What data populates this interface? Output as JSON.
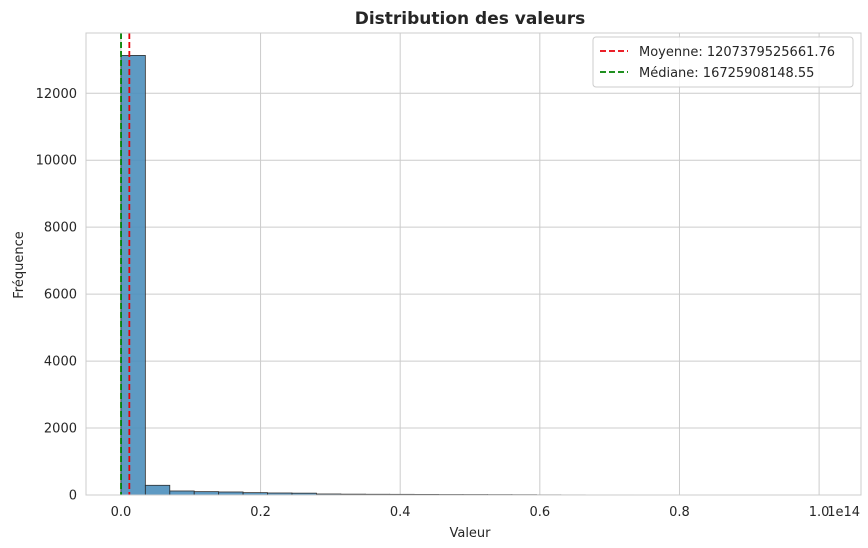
{
  "chart_data": {
    "type": "histogram",
    "title": "Distribution des valeurs",
    "xlabel": "Valeur",
    "ylabel": "Fréquence",
    "x_offset_label": "1e14",
    "x_scale": 100000000000000.0,
    "xlim": [
      -0.05,
      1.06
    ],
    "ylim": [
      0,
      13800
    ],
    "x_ticks": [
      0.0,
      0.2,
      0.4,
      0.6,
      0.8,
      1.0
    ],
    "x_tick_labels": [
      "0.0",
      "0.2",
      "0.4",
      "0.6",
      "0.8",
      "1.0"
    ],
    "y_ticks": [
      0,
      2000,
      4000,
      6000,
      8000,
      10000,
      12000
    ],
    "y_tick_labels": [
      "0",
      "2000",
      "4000",
      "6000",
      "8000",
      "10000",
      "12000"
    ],
    "bin_start": 0.0,
    "bin_width": 0.035,
    "counts": [
      13130,
      290,
      120,
      100,
      90,
      70,
      60,
      55,
      30,
      25,
      22,
      20,
      18,
      15,
      14,
      12,
      10,
      6,
      4,
      3,
      3,
      2,
      2,
      2,
      2,
      1,
      1,
      1,
      1,
      1
    ],
    "bar_color": "#4c8fbd",
    "grid": true,
    "legend_position": "upper right",
    "lines": [
      {
        "label": "Moyenne: 1207379525661.76",
        "x": 0.0120737952566176,
        "color": "#e8000b"
      },
      {
        "label": "Médiane: 16725908148.55",
        "x": 0.0001672590814855,
        "color": "#008000"
      }
    ]
  }
}
